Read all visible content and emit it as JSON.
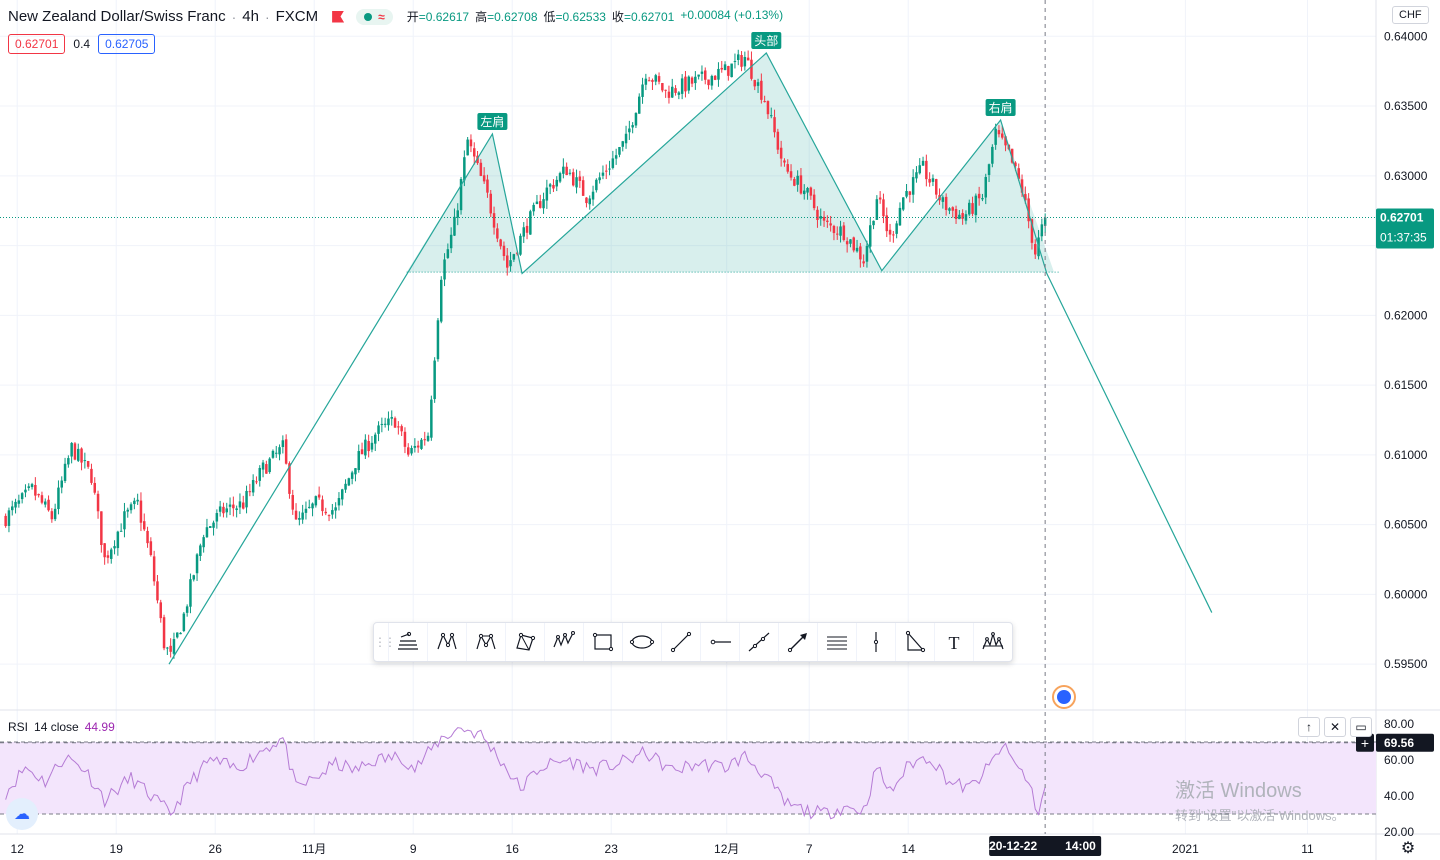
{
  "header": {
    "symbol_title": "New Zealand Dollar/Swiss Franc",
    "interval": "4h",
    "exchange": "FXCM",
    "separator": "·",
    "flag_icon": "flag-icon",
    "status_dot_icon": "market-open-dot-icon",
    "status_wave_icon": "wave-icon",
    "ohlc": {
      "open_label": "开",
      "open_value": "=0.62617",
      "high_label": "高",
      "high_value": "=0.62708",
      "low_label": "低",
      "low_value": "=0.62533",
      "close_label": "收",
      "close_value": "=0.62701",
      "change": "+0.00084 (+0.13%)"
    }
  },
  "quote": {
    "bid": "0.62701",
    "spread": "0.4",
    "ask": "0.62705"
  },
  "currency_label": "CHF",
  "colors": {
    "up": "#089981",
    "down": "#f23645",
    "pattern_line": "#26a69a",
    "pattern_fill": "#26a69a",
    "rsi_line": "#b57bd5",
    "rsi_band": "#f3e5fc",
    "price_tag": "#089981"
  },
  "price_tag": {
    "price": "0.62701",
    "countdown": "01:37:35"
  },
  "time_tag": {
    "date": "2020-12-22",
    "time": "14:00"
  },
  "drawing_toolbar": {
    "tools": [
      {
        "name": "xabcd-tool",
        "icon": "elliott-wave-icon"
      },
      {
        "name": "xabcd-pattern",
        "icon": "xabcd-pattern-icon"
      },
      {
        "name": "cypher-pattern",
        "icon": "cypher-pattern-icon"
      },
      {
        "name": "abcd-pattern",
        "icon": "abcd-pattern-icon"
      },
      {
        "name": "three-drives",
        "icon": "three-drives-icon"
      },
      {
        "name": "rectangle",
        "icon": "rectangle-icon"
      },
      {
        "name": "ellipse",
        "icon": "ellipse-icon"
      },
      {
        "name": "trend-line",
        "icon": "trend-line-icon"
      },
      {
        "name": "horizontal-ray",
        "icon": "horizontal-ray-icon"
      },
      {
        "name": "extended-line",
        "icon": "extended-line-icon"
      },
      {
        "name": "arrow",
        "icon": "arrow-icon"
      },
      {
        "name": "fib-channel",
        "icon": "fib-channel-icon"
      },
      {
        "name": "vertical-line",
        "icon": "vertical-line-icon"
      },
      {
        "name": "triangle-pattern",
        "icon": "triangle-pattern-icon"
      },
      {
        "name": "text",
        "icon": "text-icon"
      },
      {
        "name": "head-shoulders",
        "icon": "head-shoulders-icon"
      }
    ]
  },
  "rsi": {
    "name": "RSI",
    "params": "14 close",
    "value": "44.99",
    "crosshair_value": "69.56",
    "buttons": [
      "↑",
      "✕",
      "▭"
    ]
  },
  "watermark": {
    "line1": "激活 Windows",
    "line2": "转到\"设置\"以激活 Windows。"
  },
  "chart_data": {
    "type": "candlestick",
    "title": "",
    "xlabel": "",
    "ylabel": "",
    "ylim": [
      0.59186,
      0.6426
    ],
    "y_ticks": [
      "0.64000",
      "0.63500",
      "0.63000",
      "0.62000",
      "0.61500",
      "0.61000",
      "0.60500",
      "0.60000",
      "0.59500"
    ],
    "x_ticks": [
      {
        "label": "12",
        "bar": 4
      },
      {
        "label": "19",
        "bar": 34
      },
      {
        "label": "26",
        "bar": 64
      },
      {
        "label": "11月",
        "bar": 94
      },
      {
        "label": "9",
        "bar": 124
      },
      {
        "label": "16",
        "bar": 154
      },
      {
        "label": "23",
        "bar": 184
      },
      {
        "label": "12月",
        "bar": 219
      },
      {
        "label": "7",
        "bar": 244
      },
      {
        "label": "14",
        "bar": 274
      },
      {
        "label": ":00",
        "bar": 330
      },
      {
        "label": "2021",
        "bar": 358
      },
      {
        "label": "11",
        "bar": 395
      }
    ],
    "bar_count": 316,
    "last_price": 0.62701,
    "cursor_bar": 315,
    "anchors": [
      [
        0,
        0.6055
      ],
      [
        8,
        0.6075
      ],
      [
        14,
        0.6055
      ],
      [
        20,
        0.6105
      ],
      [
        26,
        0.6085
      ],
      [
        30,
        0.6025
      ],
      [
        36,
        0.6055
      ],
      [
        40,
        0.6065
      ],
      [
        44,
        0.6025
      ],
      [
        48,
        0.5965
      ],
      [
        50,
        0.5955
      ],
      [
        54,
        0.5985
      ],
      [
        60,
        0.6045
      ],
      [
        66,
        0.606
      ],
      [
        72,
        0.6065
      ],
      [
        78,
        0.609
      ],
      [
        84,
        0.6105
      ],
      [
        88,
        0.605
      ],
      [
        94,
        0.6065
      ],
      [
        100,
        0.606
      ],
      [
        106,
        0.6095
      ],
      [
        112,
        0.6115
      ],
      [
        118,
        0.6125
      ],
      [
        122,
        0.61
      ],
      [
        128,
        0.6115
      ],
      [
        132,
        0.623
      ],
      [
        136,
        0.6265
      ],
      [
        140,
        0.6325
      ],
      [
        146,
        0.6285
      ],
      [
        152,
        0.6235
      ],
      [
        158,
        0.6265
      ],
      [
        164,
        0.629
      ],
      [
        170,
        0.6305
      ],
      [
        176,
        0.6285
      ],
      [
        182,
        0.6305
      ],
      [
        188,
        0.6325
      ],
      [
        194,
        0.6375
      ],
      [
        200,
        0.636
      ],
      [
        206,
        0.6365
      ],
      [
        212,
        0.637
      ],
      [
        218,
        0.6375
      ],
      [
        224,
        0.6385
      ],
      [
        230,
        0.6355
      ],
      [
        236,
        0.6305
      ],
      [
        242,
        0.629
      ],
      [
        248,
        0.6265
      ],
      [
        254,
        0.626
      ],
      [
        260,
        0.624
      ],
      [
        264,
        0.6285
      ],
      [
        268,
        0.6255
      ],
      [
        272,
        0.6285
      ],
      [
        278,
        0.6305
      ],
      [
        284,
        0.628
      ],
      [
        290,
        0.627
      ],
      [
        296,
        0.6285
      ],
      [
        300,
        0.633
      ],
      [
        304,
        0.6315
      ],
      [
        308,
        0.629
      ],
      [
        312,
        0.6245
      ],
      [
        315,
        0.627
      ]
    ],
    "head_and_shoulders": {
      "labels": {
        "left_shoulder": "左肩",
        "head": "头部",
        "right_shoulder": "右肩"
      },
      "points": [
        {
          "bar": 50,
          "price": 0.595
        },
        {
          "bar": 148,
          "price": 0.633
        },
        {
          "bar": 157,
          "price": 0.623
        },
        {
          "bar": 231,
          "price": 0.6388
        },
        {
          "bar": 266,
          "price": 0.6232
        },
        {
          "bar": 302,
          "price": 0.634
        },
        {
          "bar": 316,
          "price": 0.623
        },
        {
          "bar": 366,
          "price": 0.5987
        }
      ],
      "neckline_price": 0.6231,
      "neckline_from_bar": 122,
      "neckline_to_bar": 320
    },
    "rsi": {
      "ylim": [
        20,
        80
      ],
      "y_ticks": [
        "80.00",
        "60.00",
        "40.00",
        "20.00"
      ],
      "upper": 70,
      "lower": 30,
      "anchors": [
        [
          0,
          42
        ],
        [
          6,
          56
        ],
        [
          12,
          48
        ],
        [
          18,
          62
        ],
        [
          24,
          55
        ],
        [
          30,
          38
        ],
        [
          38,
          50
        ],
        [
          44,
          40
        ],
        [
          50,
          30
        ],
        [
          56,
          48
        ],
        [
          62,
          60
        ],
        [
          70,
          55
        ],
        [
          78,
          66
        ],
        [
          84,
          72
        ],
        [
          88,
          44
        ],
        [
          94,
          50
        ],
        [
          100,
          58
        ],
        [
          106,
          54
        ],
        [
          112,
          60
        ],
        [
          120,
          62
        ],
        [
          124,
          55
        ],
        [
          132,
          72
        ],
        [
          138,
          78
        ],
        [
          144,
          74
        ],
        [
          150,
          60
        ],
        [
          156,
          44
        ],
        [
          162,
          56
        ],
        [
          170,
          60
        ],
        [
          178,
          55
        ],
        [
          186,
          58
        ],
        [
          194,
          64
        ],
        [
          202,
          54
        ],
        [
          210,
          58
        ],
        [
          218,
          56
        ],
        [
          224,
          62
        ],
        [
          230,
          52
        ],
        [
          236,
          36
        ],
        [
          242,
          32
        ],
        [
          248,
          30
        ],
        [
          254,
          34
        ],
        [
          260,
          32
        ],
        [
          264,
          56
        ],
        [
          268,
          42
        ],
        [
          274,
          58
        ],
        [
          280,
          62
        ],
        [
          286,
          48
        ],
        [
          292,
          44
        ],
        [
          298,
          56
        ],
        [
          302,
          68
        ],
        [
          306,
          58
        ],
        [
          310,
          48
        ],
        [
          313,
          30
        ],
        [
          315,
          45
        ]
      ]
    }
  }
}
